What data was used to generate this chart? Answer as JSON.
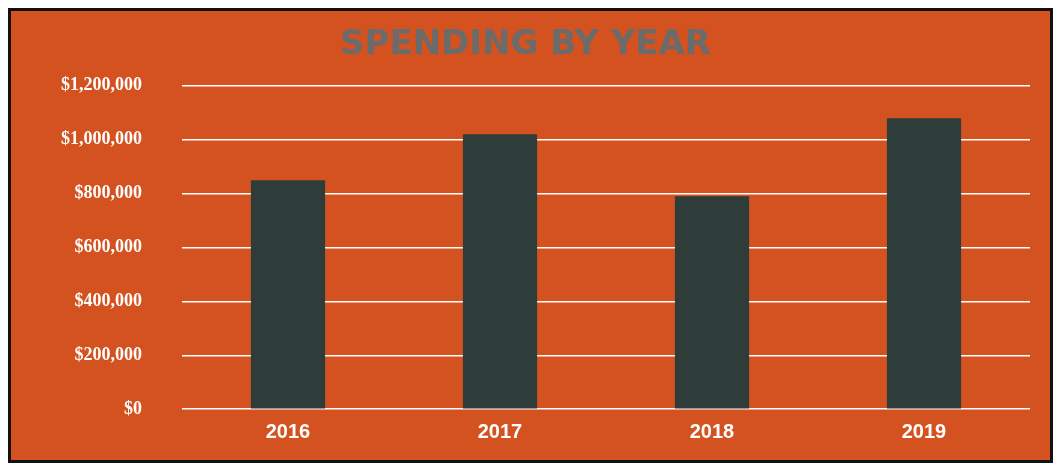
{
  "chart_data": {
    "type": "bar",
    "title": "SPENDING BY YEAR",
    "categories": [
      "2016",
      "2017",
      "2018",
      "2019"
    ],
    "values": [
      850000,
      1020000,
      790000,
      1080000
    ],
    "color": "#2f3d3a",
    "ylim": [
      0,
      1200000
    ],
    "yticks": [
      {
        "value": 0,
        "label": "$0"
      },
      {
        "value": 200000,
        "label": "$200,000"
      },
      {
        "value": 400000,
        "label": "$400,000"
      },
      {
        "value": 600000,
        "label": "$600,000"
      },
      {
        "value": 800000,
        "label": "$800,000"
      },
      {
        "value": 1000000,
        "label": "$1,000,000"
      },
      {
        "value": 1200000,
        "label": "$1,200,000"
      }
    ],
    "grid": "y",
    "legend": false
  }
}
